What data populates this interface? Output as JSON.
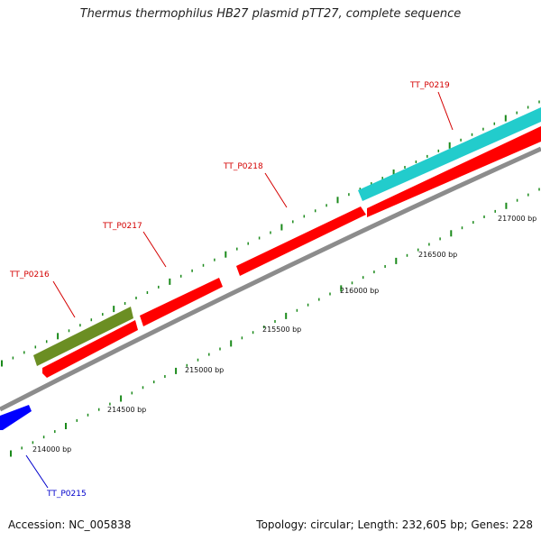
{
  "title": "Thermus thermophilus HB27 plasmid pTT27, complete sequence",
  "footer": {
    "accession": "Accession: NC_005838",
    "summary": "Topology: circular; Length: 232,605 bp; Genes: 228"
  },
  "colors": {
    "backbone": "#8c8c8c",
    "tick": "#1b8a1b",
    "reverse_gene": "#ff0000",
    "olive_gene": "#6b8e23",
    "cyan_gene": "#22cccc",
    "blue_gene": "#0000ff",
    "red_label": "#d40000",
    "blue_label": "#0000cc"
  },
  "scale_labels": [
    "214000 bp",
    "214500 bp",
    "215000 bp",
    "215500 bp",
    "216000 bp",
    "216500 bp",
    "217000 bp"
  ],
  "genes": [
    {
      "label": "TT_P0215",
      "color": "blue"
    },
    {
      "label": "TT_P0216",
      "color": "red"
    },
    {
      "label": "TT_P0217",
      "color": "red"
    },
    {
      "label": "TT_P0218",
      "color": "red"
    },
    {
      "label": "TT_P0219",
      "color": "red"
    }
  ],
  "feature_tracks": [
    {
      "type": "gene",
      "color": "blue",
      "name": "TT_P0215"
    },
    {
      "type": "gene",
      "color": "olive"
    },
    {
      "type": "gene",
      "color": "red",
      "name": "TT_P0216"
    },
    {
      "type": "gene",
      "color": "red",
      "name": "TT_P0217"
    },
    {
      "type": "gene",
      "color": "red",
      "name": "TT_P0218"
    },
    {
      "type": "gene",
      "color": "red",
      "name": "TT_P0219"
    },
    {
      "type": "gene",
      "color": "cyan"
    }
  ]
}
